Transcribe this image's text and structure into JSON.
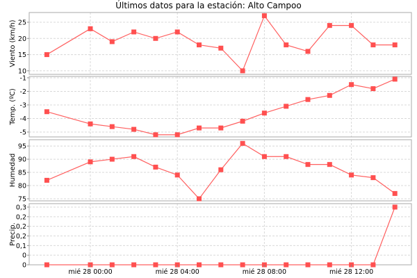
{
  "title": "Últimos datos para la estación: Alto Campoo",
  "colors": {
    "line": "#ff6060",
    "marker": "#ff5050",
    "grid": "#d8d8d8",
    "frame": "#aaaaaa"
  },
  "chart_data": {
    "type": "line",
    "x": [
      "mar 27 22:00",
      "mié 28 00:00",
      "mié 28 01:00",
      "mié 28 02:00",
      "mié 28 03:00",
      "mié 28 04:00",
      "mié 28 05:00",
      "mié 28 06:00",
      "mié 28 07:00",
      "mié 28 08:00",
      "mié 28 09:00",
      "mié 28 10:00",
      "mié 28 11:00",
      "mié 28 12:00",
      "mié 28 13:00",
      "mié 28 14:00"
    ],
    "x_hours": [
      -2,
      0,
      1,
      2,
      3,
      4,
      5,
      6,
      7,
      8,
      9,
      10,
      11,
      12,
      13,
      14
    ],
    "x_ticks": [
      {
        "hour": 0,
        "label": "mié 28 00:00"
      },
      {
        "hour": 4,
        "label": "mié 28 04:00"
      },
      {
        "hour": 8,
        "label": "mié 28 08:00"
      },
      {
        "hour": 12,
        "label": "mié 28 12:00"
      }
    ],
    "grid": true,
    "panels": [
      {
        "ylabel": "Viento (km/h)",
        "ylim": [
          8.9,
          28
        ],
        "ticks": [
          10,
          15,
          20,
          25
        ],
        "tick_labels": [
          "10",
          "15",
          "20",
          "25"
        ],
        "values": [
          15,
          23,
          19,
          22,
          20,
          22,
          18,
          17,
          10,
          27,
          18,
          16,
          24,
          24,
          18,
          18
        ]
      },
      {
        "ylabel": "Temp. (ºC)",
        "ylim": [
          -5.36,
          -0.9
        ],
        "ticks": [
          -5,
          -4,
          -3,
          -2,
          -1
        ],
        "tick_labels": [
          "-5",
          "-4",
          "-3",
          "-2",
          "-1"
        ],
        "values": [
          -3.5,
          -4.4,
          -4.6,
          -4.8,
          -5.2,
          -5.2,
          -4.7,
          -4.7,
          -4.2,
          -3.6,
          -3.1,
          -2.6,
          -2.3,
          -1.5,
          -1.8,
          -1.1
        ]
      },
      {
        "ylabel": "Humedad",
        "ylim": [
          74.2,
          97.4
        ],
        "ticks": [
          75,
          80,
          85,
          90,
          95
        ],
        "tick_labels": [
          "75",
          "80",
          "85",
          "90",
          "95"
        ],
        "values": [
          82,
          89,
          90,
          91,
          87,
          84,
          75,
          86,
          96,
          91,
          91,
          88,
          88,
          84,
          83,
          77
        ]
      },
      {
        "ylabel": "Precip.",
        "ylim": [
          0,
          0.318
        ],
        "ticks": [
          0,
          0.05,
          0.1,
          0.15,
          0.2,
          0.25,
          0.3
        ],
        "tick_labels": [
          "0",
          "0",
          "0,1",
          "0,2",
          "0,2",
          "0,2",
          "0,3"
        ],
        "values": [
          0,
          0,
          0,
          0,
          0,
          0,
          0,
          0,
          0,
          0,
          0,
          0,
          0,
          0,
          0,
          0.3
        ]
      }
    ]
  }
}
